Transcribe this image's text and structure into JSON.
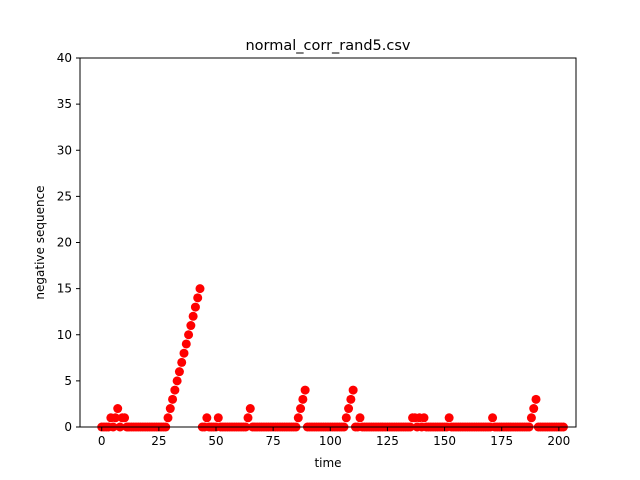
{
  "chart_data": {
    "type": "scatter",
    "title": "normal_corr_rand5.csv",
    "xlabel": "time",
    "ylabel": "negative sequence",
    "xlim": [
      -9.5,
      207.5
    ],
    "ylim": [
      0,
      40
    ],
    "xticks": [
      0,
      25,
      50,
      75,
      100,
      125,
      150,
      175,
      200
    ],
    "yticks": [
      0,
      5,
      10,
      15,
      20,
      25,
      30,
      35,
      40
    ],
    "grid": false,
    "marker_color": "#ff0000",
    "x": [
      0,
      1,
      2,
      3,
      4,
      5,
      6,
      7,
      8,
      9,
      10,
      11,
      12,
      13,
      14,
      15,
      16,
      17,
      18,
      19,
      20,
      21,
      22,
      23,
      24,
      25,
      26,
      27,
      28,
      29,
      30,
      31,
      32,
      33,
      34,
      35,
      36,
      37,
      38,
      39,
      40,
      41,
      42,
      43,
      44,
      45,
      46,
      47,
      48,
      49,
      50,
      51,
      52,
      53,
      54,
      55,
      56,
      57,
      58,
      59,
      60,
      61,
      62,
      63,
      64,
      65,
      66,
      67,
      68,
      69,
      70,
      71,
      72,
      73,
      74,
      75,
      76,
      77,
      78,
      79,
      80,
      81,
      82,
      83,
      84,
      85,
      86,
      87,
      88,
      89,
      90,
      91,
      92,
      93,
      94,
      95,
      96,
      97,
      98,
      99,
      100,
      101,
      102,
      103,
      104,
      105,
      106,
      107,
      108,
      109,
      110,
      111,
      112,
      113,
      114,
      115,
      116,
      117,
      118,
      119,
      120,
      121,
      122,
      123,
      124,
      125,
      126,
      127,
      128,
      129,
      130,
      131,
      132,
      133,
      134,
      135,
      136,
      137,
      138,
      139,
      140,
      141,
      142,
      143,
      144,
      145,
      146,
      147,
      148,
      149,
      150,
      151,
      152,
      153,
      154,
      155,
      156,
      157,
      158,
      159,
      160,
      161,
      162,
      163,
      164,
      165,
      166,
      167,
      168,
      169,
      170,
      171,
      172,
      173,
      174,
      175,
      176,
      177,
      178,
      179,
      180,
      181,
      182,
      183,
      184,
      185,
      186,
      187,
      188,
      189,
      190,
      191,
      192,
      193,
      194,
      195,
      196,
      197,
      198,
      199,
      200,
      201,
      202
    ],
    "y": [
      0,
      0,
      0,
      0,
      1,
      0,
      1,
      2,
      0,
      1,
      1,
      0,
      0,
      0,
      0,
      0,
      0,
      0,
      0,
      0,
      0,
      0,
      0,
      0,
      0,
      0,
      0,
      0,
      0,
      1,
      2,
      3,
      4,
      5,
      6,
      7,
      8,
      9,
      10,
      11,
      12,
      13,
      14,
      15,
      0,
      0,
      1,
      0,
      0,
      0,
      0,
      1,
      0,
      0,
      0,
      0,
      0,
      0,
      0,
      0,
      0,
      0,
      0,
      0,
      1,
      2,
      0,
      0,
      0,
      0,
      0,
      0,
      0,
      0,
      0,
      0,
      0,
      0,
      0,
      0,
      0,
      0,
      0,
      0,
      0,
      0,
      1,
      2,
      3,
      4,
      0,
      0,
      0,
      0,
      0,
      0,
      0,
      0,
      0,
      0,
      0,
      0,
      0,
      0,
      0,
      0,
      0,
      1,
      2,
      3,
      4,
      0,
      0,
      1,
      0,
      0,
      0,
      0,
      0,
      0,
      0,
      0,
      0,
      0,
      0,
      0,
      0,
      0,
      0,
      0,
      0,
      0,
      0,
      0,
      0,
      0,
      1,
      1,
      0,
      1,
      0,
      1,
      0,
      0,
      0,
      0,
      0,
      0,
      0,
      0,
      0,
      0,
      1,
      0,
      0,
      0,
      0,
      0,
      0,
      0,
      0,
      0,
      0,
      0,
      0,
      0,
      0,
      0,
      0,
      0,
      0,
      1,
      0,
      0,
      0,
      0,
      0,
      0,
      0,
      0,
      0,
      0,
      0,
      0,
      0,
      0,
      0,
      0,
      1,
      2,
      3,
      0,
      0,
      0,
      0,
      0,
      0,
      0,
      0,
      0,
      0,
      0,
      0
    ]
  }
}
